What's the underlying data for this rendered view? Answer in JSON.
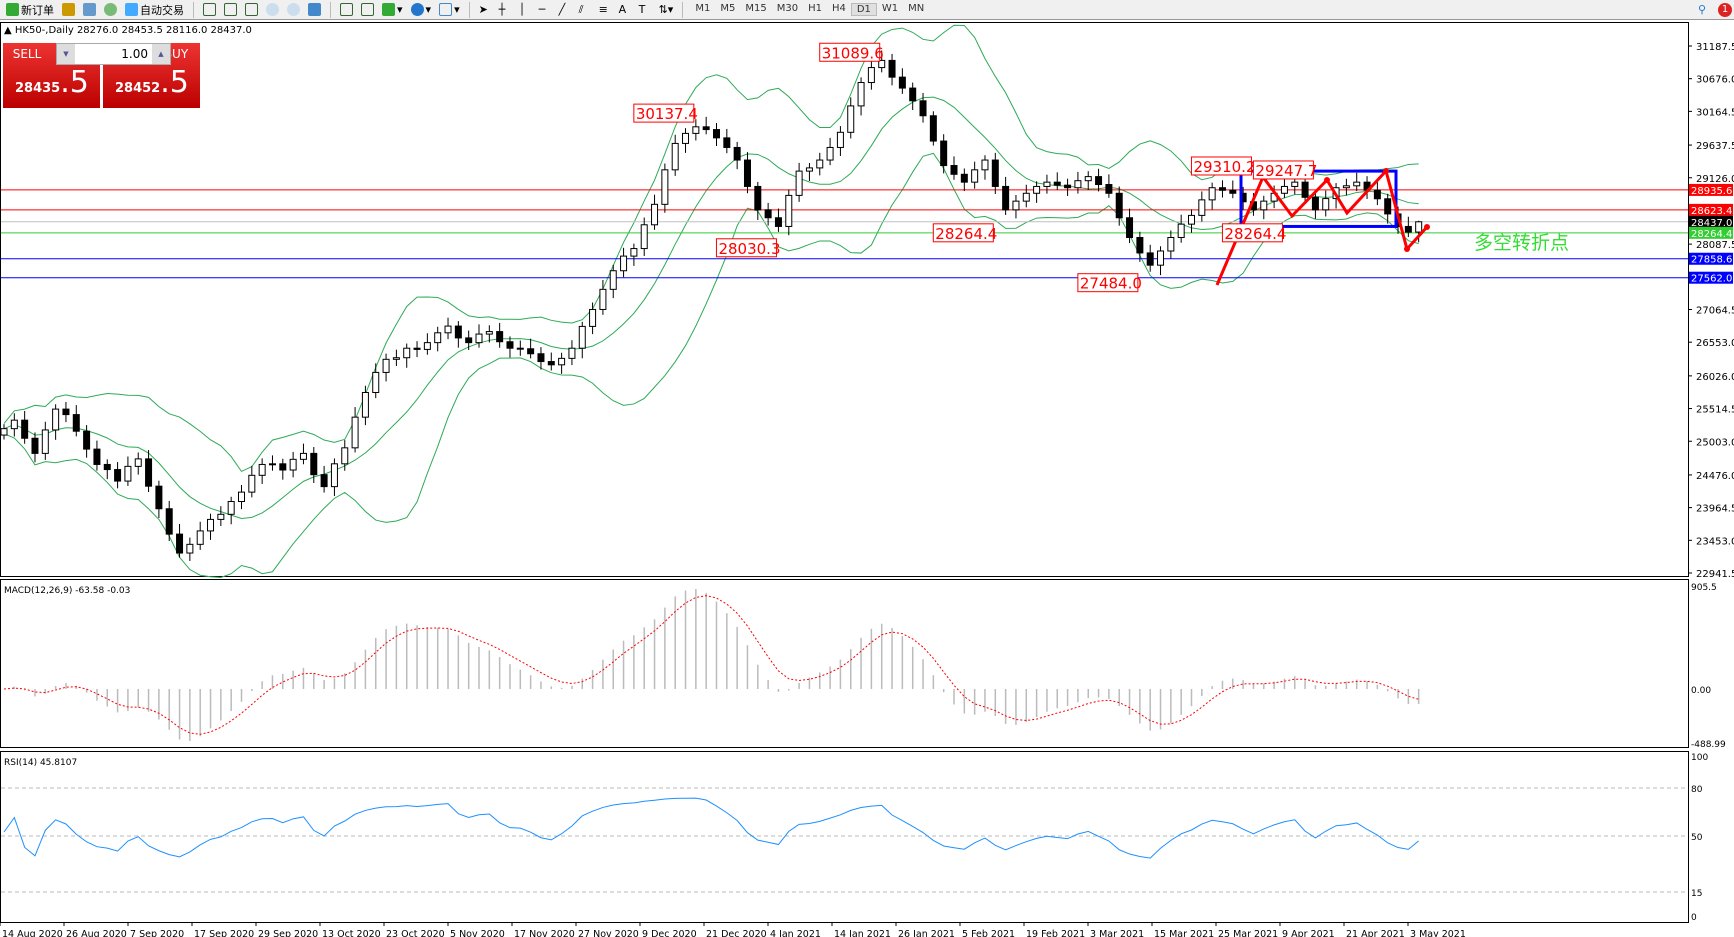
{
  "toolbar": {
    "new_order": "新订单",
    "auto_trading": "自动交易",
    "timeframes": [
      "M1",
      "M5",
      "M15",
      "M30",
      "H1",
      "H4",
      "D1",
      "W1",
      "MN"
    ],
    "active_timeframe": "D1",
    "notification_count": "1"
  },
  "symbol_header": "HK50-,Daily  28276.0 28453.5 28116.0 28437.0",
  "trade_panel": {
    "sell_label": "SELL",
    "buy_label": "BUY",
    "lot": "1.00",
    "sell_price_main": "28435",
    "sell_price_big": ".5",
    "buy_price_main": "28452",
    "buy_price_big": ".5"
  },
  "chart_data": {
    "type": "candlestick",
    "symbol": "HK50-",
    "timeframe": "Daily",
    "closes": [
      25200,
      25333,
      25050,
      24813,
      25180,
      25506,
      25420,
      25160,
      24880,
      24640,
      24560,
      24380,
      24610,
      24727,
      24300,
      23947,
      23550,
      23254,
      23390,
      23600,
      23780,
      23860,
      24060,
      24207,
      24470,
      24640,
      24650,
      24553,
      24720,
      24813,
      24480,
      24293,
      24650,
      24900,
      25380,
      25766,
      26080,
      26285,
      26310,
      26459,
      26440,
      26546,
      26700,
      26805,
      26620,
      26546,
      26680,
      26719,
      26560,
      26459,
      26450,
      26372,
      26250,
      26199,
      26300,
      26459,
      26800,
      27065,
      27380,
      27671,
      27900,
      28018,
      28390,
      28710,
      29250,
      29663,
      29820,
      29923,
      29880,
      29750,
      29600,
      29403,
      28990,
      28624,
      28500,
      28364,
      28850,
      29230,
      29280,
      29403,
      29600,
      29837,
      30250,
      30616,
      30850,
      30962,
      30700,
      30529,
      30330,
      30096,
      29700,
      29317,
      29180,
      29057,
      29250,
      29403,
      28990,
      28624,
      28760,
      28883,
      28990,
      29057,
      29010,
      28970,
      29080,
      29144,
      29020,
      28883,
      28500,
      28191,
      27950,
      27758,
      27980,
      28191,
      28400,
      28537,
      28780,
      28970,
      28930,
      28883,
      28750,
      28624,
      28760,
      28883,
      28990,
      29057,
      28820,
      28624,
      28800,
      28970,
      29000,
      29057,
      28930,
      28797,
      28560,
      28364,
      28276,
      28437
    ],
    "last_bar": {
      "open": 28276.0,
      "high": 28453.5,
      "low": 28116.0,
      "close": 28437.0
    },
    "price_ticks": [
      "31187.5",
      "30676.0",
      "30164.5",
      "29637.5",
      "29126.0",
      "28087.5",
      "27064.5",
      "26553.0",
      "26026.0",
      "25514.5",
      "25003.0",
      "24476.0",
      "23964.5",
      "23453.0",
      "22941.5"
    ],
    "ylim": [
      22941.5,
      31187.5
    ],
    "date_ticks": [
      "14 Aug 2020",
      "26 Aug 2020",
      "7 Sep 2020",
      "17 Sep 2020",
      "29 Sep 2020",
      "13 Oct 2020",
      "23 Oct 2020",
      "5 Nov 2020",
      "17 Nov 2020",
      "27 Nov 2020",
      "9 Dec 2020",
      "21 Dec 2020",
      "4 Jan 2021",
      "14 Jan 2021",
      "26 Jan 2021",
      "5 Feb 2021",
      "19 Feb 2021",
      "3 Mar 2021",
      "15 Mar 2021",
      "25 Mar 2021",
      "9 Apr 2021",
      "21 Apr 2021",
      "3 May 2021"
    ],
    "levels": [
      {
        "price": 28935.6,
        "label": "28935.6",
        "color": "#ff0000"
      },
      {
        "price": 28623.4,
        "label": "28623.4",
        "color": "#ff0000"
      },
      {
        "price": 28437.0,
        "label": "28437.0",
        "color": "#000000",
        "line": "#c0c0c0"
      },
      {
        "price": 28264.4,
        "label": "28264.4",
        "color": "#32cd32"
      },
      {
        "price": 27858.6,
        "label": "27858.6",
        "color": "#0000ff"
      },
      {
        "price": 27562.0,
        "label": "27562.0",
        "color": "#0000ff"
      }
    ],
    "annotations": [
      {
        "text": "31089.6",
        "price": 31089.6,
        "bar": 85
      },
      {
        "text": "30137.4",
        "price": 30137.4,
        "bar": 67
      },
      {
        "text": "28030.3",
        "price": 28030.3,
        "bar": 75
      },
      {
        "text": "28264.4",
        "price": 28264.4,
        "bar": 96
      },
      {
        "text": "27484.0",
        "price": 27484.0,
        "bar": 110
      },
      {
        "text": "29310.2",
        "price": 29310.2,
        "bar": 121
      },
      {
        "text": "29247.7",
        "price": 29247.7,
        "bar": 127
      },
      {
        "text": "28264.4",
        "price": 28264.4,
        "bar": 124
      }
    ],
    "range_box": {
      "top": 29230,
      "bottom": 28364,
      "color": "#0000ff"
    },
    "note_text": "多空转折点",
    "note_color": "#33dd33",
    "indicators": {
      "bollinger": {
        "color": "#2eaa55"
      },
      "macd": {
        "label": "MACD(12,26,9) -63.58 -0.03",
        "ticks": [
          "905.5",
          "0.00",
          "-488.99"
        ]
      },
      "rsi": {
        "label": "RSI(14) 45.8107",
        "ticks": [
          "100",
          "80",
          "50",
          "15",
          "0"
        ],
        "color": "#1e90ff"
      }
    }
  }
}
